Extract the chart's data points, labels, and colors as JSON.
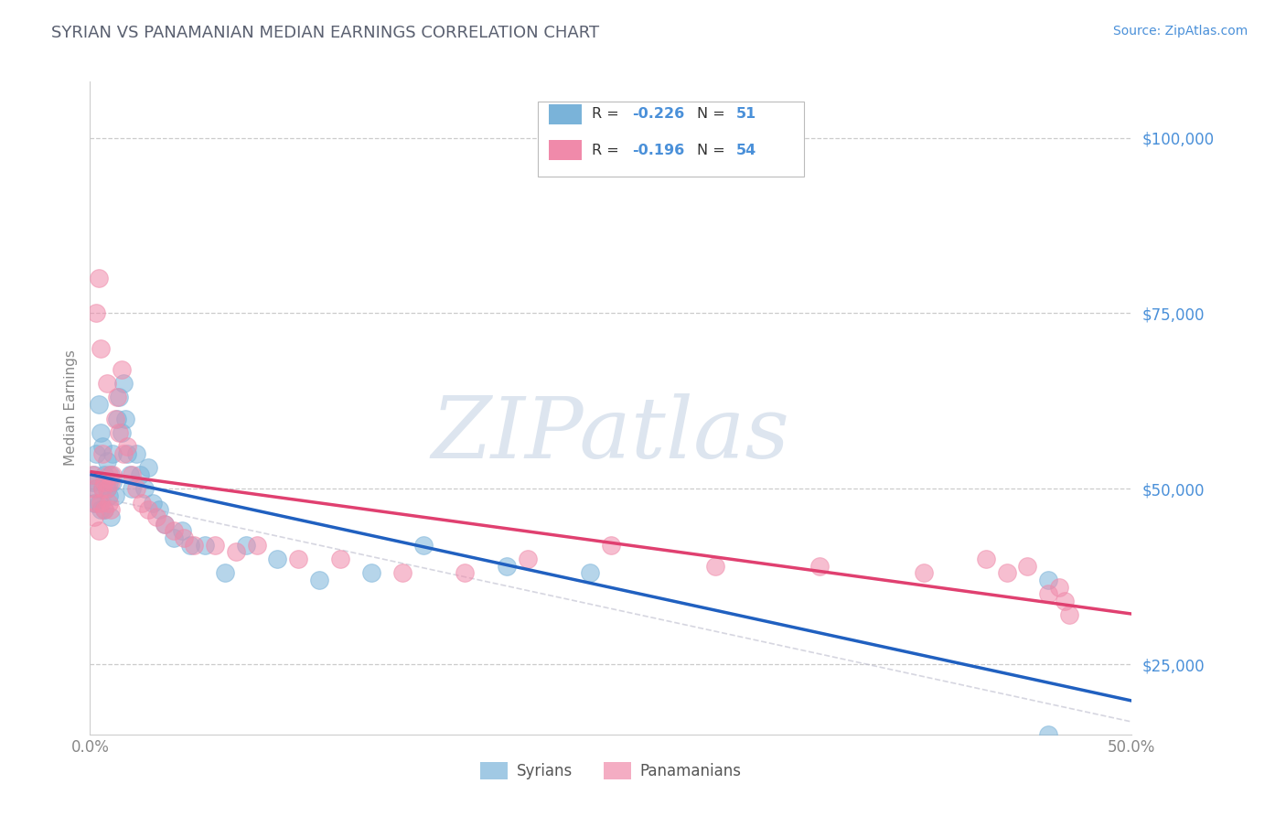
{
  "title": "SYRIAN VS PANAMANIAN MEDIAN EARNINGS CORRELATION CHART",
  "source_text": "Source: ZipAtlas.com",
  "ylabel": "Median Earnings",
  "xlim": [
    0.0,
    0.5
  ],
  "ylim": [
    15000,
    108000
  ],
  "yticks": [
    25000,
    50000,
    75000,
    100000
  ],
  "ytick_labels": [
    "$25,000",
    "$50,000",
    "$75,000",
    "$100,000"
  ],
  "xticks": [
    0.0,
    0.1,
    0.2,
    0.3,
    0.4,
    0.5
  ],
  "xtick_labels": [
    "0.0%",
    "",
    "",
    "",
    "",
    "50.0%"
  ],
  "syrian_color": "#7ab3d9",
  "panamanian_color": "#f08aaa",
  "syrian_line_color": "#2060c0",
  "panamanian_line_color": "#e04070",
  "watermark": "ZIPatlas",
  "watermark_color": "#dde5ef",
  "background_color": "#ffffff",
  "grid_color": "#cccccc",
  "title_color": "#5a6070",
  "axis_label_color": "#888888",
  "tick_color": "#888888",
  "syrian_scatter_x": [
    0.001,
    0.002,
    0.002,
    0.003,
    0.003,
    0.004,
    0.004,
    0.005,
    0.005,
    0.006,
    0.006,
    0.007,
    0.007,
    0.008,
    0.008,
    0.009,
    0.009,
    0.01,
    0.01,
    0.011,
    0.011,
    0.012,
    0.013,
    0.014,
    0.015,
    0.016,
    0.017,
    0.018,
    0.019,
    0.02,
    0.022,
    0.024,
    0.026,
    0.028,
    0.03,
    0.033,
    0.036,
    0.04,
    0.044,
    0.048,
    0.055,
    0.065,
    0.075,
    0.09,
    0.11,
    0.135,
    0.16,
    0.2,
    0.24,
    0.46,
    0.46
  ],
  "syrian_scatter_y": [
    51000,
    52000,
    48000,
    55000,
    50000,
    62000,
    48000,
    58000,
    47000,
    56000,
    50000,
    52000,
    47000,
    54000,
    50000,
    51000,
    49000,
    52000,
    46000,
    55000,
    51000,
    49000,
    60000,
    63000,
    58000,
    65000,
    60000,
    55000,
    52000,
    50000,
    55000,
    52000,
    50000,
    53000,
    48000,
    47000,
    45000,
    43000,
    44000,
    42000,
    42000,
    38000,
    42000,
    40000,
    37000,
    38000,
    42000,
    39000,
    38000,
    37000,
    15000
  ],
  "panamanian_scatter_x": [
    0.001,
    0.002,
    0.002,
    0.003,
    0.003,
    0.004,
    0.004,
    0.005,
    0.005,
    0.006,
    0.006,
    0.007,
    0.007,
    0.008,
    0.008,
    0.009,
    0.009,
    0.01,
    0.01,
    0.011,
    0.012,
    0.013,
    0.014,
    0.015,
    0.016,
    0.018,
    0.02,
    0.022,
    0.025,
    0.028,
    0.032,
    0.036,
    0.04,
    0.045,
    0.05,
    0.06,
    0.07,
    0.08,
    0.1,
    0.12,
    0.15,
    0.18,
    0.21,
    0.25,
    0.3,
    0.35,
    0.4,
    0.43,
    0.44,
    0.45,
    0.46,
    0.465,
    0.468,
    0.47
  ],
  "panamanian_scatter_y": [
    52000,
    50000,
    46000,
    75000,
    48000,
    80000,
    44000,
    70000,
    48000,
    50000,
    55000,
    51000,
    47000,
    65000,
    50000,
    52000,
    48000,
    51000,
    47000,
    52000,
    60000,
    63000,
    58000,
    67000,
    55000,
    56000,
    52000,
    50000,
    48000,
    47000,
    46000,
    45000,
    44000,
    43000,
    42000,
    42000,
    41000,
    42000,
    40000,
    40000,
    38000,
    38000,
    40000,
    42000,
    39000,
    39000,
    38000,
    40000,
    38000,
    39000,
    35000,
    36000,
    34000,
    32000
  ]
}
